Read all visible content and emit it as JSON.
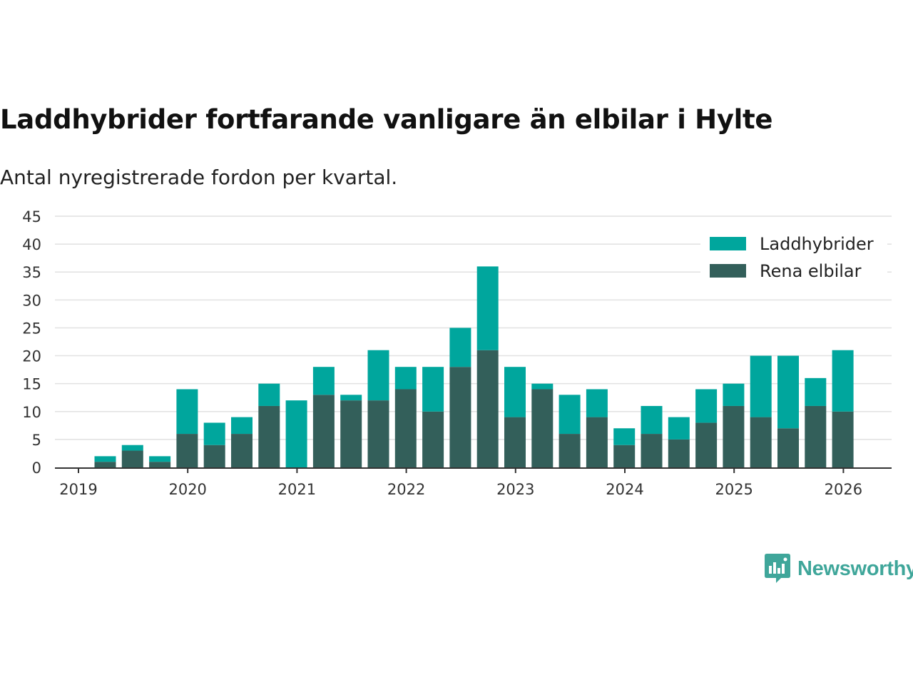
{
  "chart_data": {
    "type": "bar",
    "stacked": true,
    "title": "Laddhybrider fortfarande vanligare än elbilar i Hylte",
    "subtitle": "Antal nyregistrerade fordon per kvartal.",
    "xlabel": "",
    "ylabel": "",
    "ylim": [
      0,
      45
    ],
    "yticks": [
      "0",
      "5",
      "10",
      "15",
      "20",
      "25",
      "30",
      "35",
      "40",
      "45"
    ],
    "xticks": [
      "2019",
      "2020",
      "2021",
      "2022",
      "2023",
      "2024",
      "2025",
      "2026"
    ],
    "legend_position": "top-right",
    "categories": [
      "2019 Q2",
      "2019 Q3",
      "2019 Q4",
      "2020 Q1",
      "2020 Q2",
      "2020 Q3",
      "2020 Q4",
      "2021 Q1",
      "2021 Q2",
      "2021 Q3",
      "2021 Q4",
      "2022 Q1",
      "2022 Q2",
      "2022 Q3",
      "2022 Q4",
      "2023 Q1",
      "2023 Q2",
      "2023 Q3",
      "2023 Q4",
      "2024 Q1",
      "2024 Q2",
      "2024 Q3",
      "2024 Q4",
      "2025 Q1",
      "2025 Q2",
      "2025 Q3",
      "2025 Q4",
      "2026 Q1"
    ],
    "series": [
      {
        "name": "Rena elbilar",
        "color": "#335f5a",
        "values": [
          1,
          3,
          1,
          6,
          4,
          6,
          11,
          0,
          13,
          12,
          12,
          14,
          10,
          18,
          21,
          9,
          14,
          6,
          9,
          4,
          6,
          5,
          8,
          11,
          9,
          7,
          11,
          10
        ]
      },
      {
        "name": "Laddhybrider",
        "color": "#00a69d",
        "values": [
          1,
          1,
          1,
          8,
          4,
          3,
          4,
          12,
          5,
          1,
          9,
          4,
          8,
          7,
          15,
          9,
          1,
          7,
          5,
          3,
          5,
          4,
          6,
          4,
          11,
          13,
          5,
          11
        ]
      }
    ]
  },
  "brand": {
    "name": "Newsworthy",
    "color": "#3fa69a"
  }
}
